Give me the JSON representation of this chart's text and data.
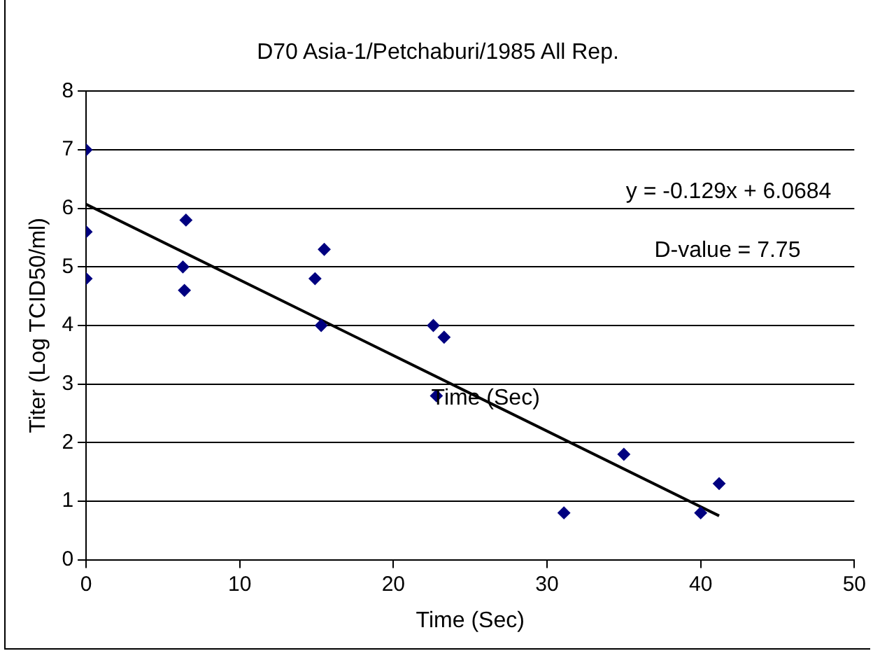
{
  "chart_data": {
    "type": "scatter",
    "title": "D70 Asia-1/Petchaburi/1985 All Rep.",
    "xlabel": "Time (Sec)",
    "ylabel": "Titer (Log TCID50/ml)",
    "series": [
      {
        "type": "scatter",
        "color": "#000080",
        "marker": "diamond",
        "x": [
          0,
          0,
          0,
          6.5,
          6.3,
          6.4,
          14.9,
          15.5,
          15.3,
          22.6,
          23.3,
          22.8,
          31.1,
          35.0,
          40.0,
          41.2
        ],
        "values": [
          7.0,
          5.6,
          4.8,
          5.8,
          5.0,
          4.6,
          4.8,
          5.3,
          4.0,
          4.0,
          3.8,
          2.8,
          0.8,
          1.8,
          0.8,
          1.3
        ]
      },
      {
        "type": "line",
        "color": "#000000",
        "marker": "none",
        "line_style": "solid",
        "x": [
          0,
          41.2
        ],
        "values": [
          6.07,
          0.75
        ]
      }
    ],
    "annotations": [
      "y = -0.129x + 6.0684",
      "D-value = 7.75",
      "Time (Sec)"
    ],
    "xlim": [
      0,
      50
    ],
    "xticks": [
      0,
      10,
      20,
      30,
      40,
      50
    ],
    "ylim": [
      0,
      8
    ],
    "yticks": [
      0,
      1,
      2,
      3,
      4,
      5,
      6,
      7,
      8
    ],
    "grid": "y",
    "legend": false
  }
}
